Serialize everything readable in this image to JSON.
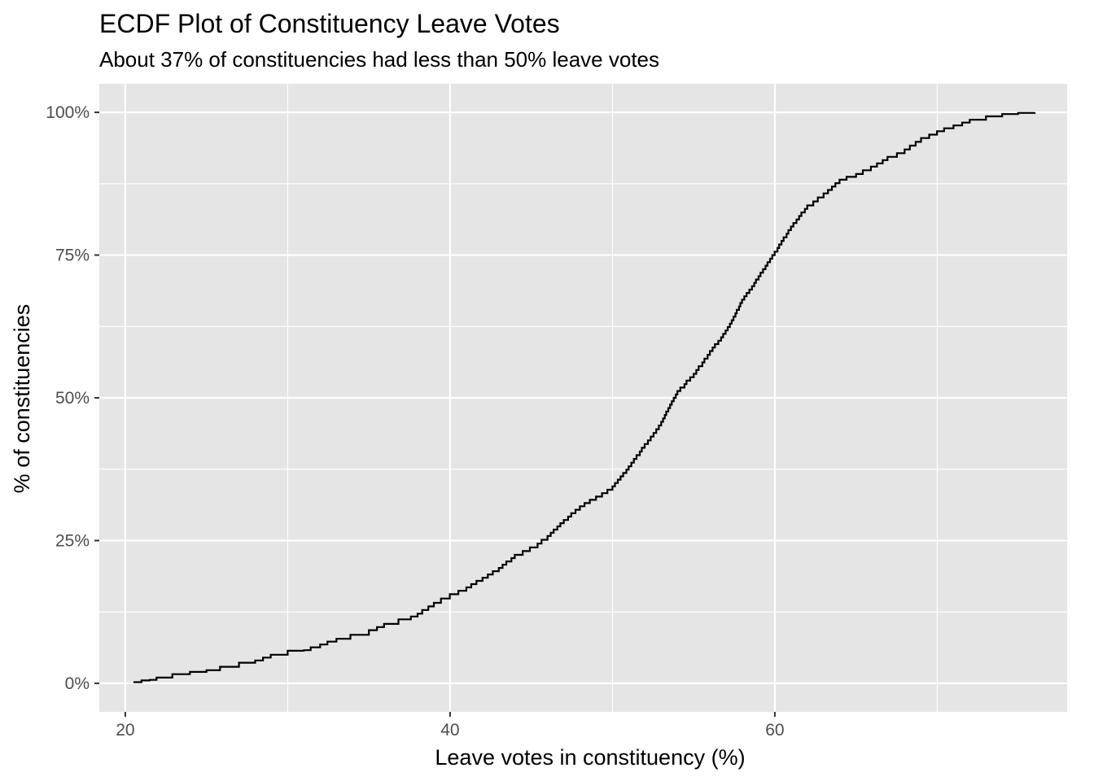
{
  "chart_data": {
    "type": "line",
    "subtype": "ecdf-step",
    "title": "ECDF Plot of Constituency Leave Votes",
    "subtitle": "About 37% of constituencies had less than 50% leave votes",
    "xlabel": "Leave votes in constituency (%)",
    "ylabel": "% of constituencies",
    "xlim": [
      18.4,
      78.0
    ],
    "ylim": [
      -0.05,
      1.05
    ],
    "x_ticks": [
      20,
      40,
      60
    ],
    "x_tick_labels": [
      "20",
      "40",
      "60"
    ],
    "x_minor_ticks": [
      30,
      50,
      70
    ],
    "y_ticks": [
      0,
      0.25,
      0.5,
      0.75,
      1.0
    ],
    "y_tick_labels": [
      "0%",
      "25%",
      "50%",
      "75%",
      "100%"
    ],
    "y_minor_ticks": [
      0.125,
      0.375,
      0.625,
      0.875
    ],
    "grid": true,
    "legend": "none",
    "background_color": "#e5e5e5",
    "grid_color": "#ffffff",
    "line_color": "#000000",
    "series": [
      {
        "x": [
          20.5,
          21.0,
          21.5,
          22.0,
          23.0,
          24.0,
          25.0,
          26.0,
          27.0,
          28.0,
          29.0,
          30.0,
          31.0,
          32.0,
          33.0,
          34.0,
          35.0,
          36.0,
          37.0,
          38.0,
          39.0,
          40.0,
          41.0,
          42.0,
          43.0,
          44.0,
          45.0,
          46.0,
          47.0,
          48.0,
          49.0,
          50.0,
          51.0,
          52.0,
          53.0,
          54.0,
          55.0,
          56.0,
          57.0,
          58.0,
          59.0,
          60.0,
          61.0,
          62.0,
          63.0,
          64.0,
          65.0,
          66.0,
          67.0,
          68.0,
          69.0,
          70.0,
          71.0,
          72.0,
          73.0,
          74.0,
          75.0,
          76.0
        ],
        "y": [
          0.002,
          0.005,
          0.006,
          0.01,
          0.016,
          0.02,
          0.023,
          0.029,
          0.036,
          0.04,
          0.05,
          0.057,
          0.058,
          0.068,
          0.078,
          0.085,
          0.093,
          0.104,
          0.112,
          0.122,
          0.141,
          0.156,
          0.168,
          0.185,
          0.202,
          0.225,
          0.238,
          0.258,
          0.286,
          0.31,
          0.327,
          0.345,
          0.38,
          0.419,
          0.458,
          0.512,
          0.542,
          0.582,
          0.618,
          0.672,
          0.713,
          0.756,
          0.8,
          0.837,
          0.858,
          0.882,
          0.892,
          0.905,
          0.922,
          0.935,
          0.955,
          0.967,
          0.977,
          0.987,
          0.993,
          0.997,
          0.999,
          1.0
        ]
      }
    ]
  }
}
